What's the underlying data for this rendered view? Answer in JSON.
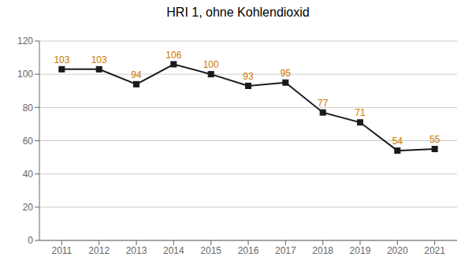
{
  "chart_data": {
    "type": "line",
    "title": "HRI 1, ohne Kohlendioxid",
    "x": [
      2011,
      2012,
      2013,
      2014,
      2015,
      2016,
      2017,
      2018,
      2019,
      2020,
      2021
    ],
    "values": [
      103,
      103,
      94,
      106,
      100,
      93,
      95,
      77,
      71,
      54,
      55
    ],
    "color": "#1a1a1a",
    "marker": "square",
    "xlim": [
      2010.4,
      2021.6
    ],
    "xticks": [
      2011,
      2012,
      2013,
      2014,
      2015,
      2016,
      2017,
      2018,
      2019,
      2020,
      2021
    ],
    "ylim": [
      0,
      120
    ],
    "yticks": [
      0,
      20,
      40,
      60,
      80,
      100,
      120
    ],
    "grid": true,
    "data_labels": true
  }
}
